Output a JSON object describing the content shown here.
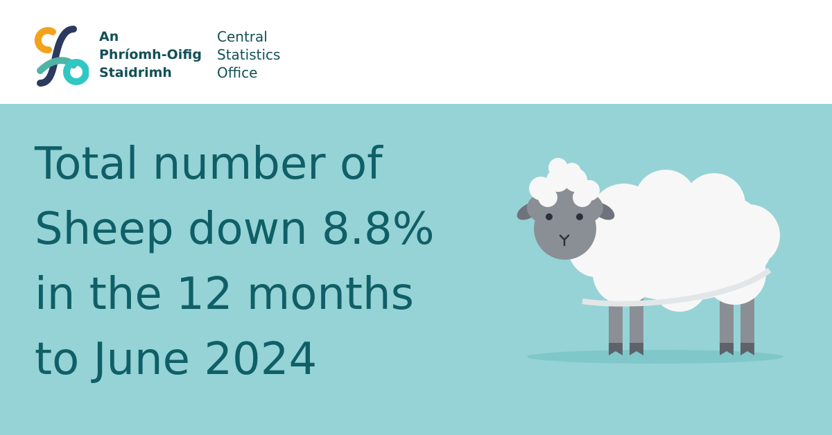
{
  "logo": {
    "irish": [
      "An",
      "Phríomh-Oifig",
      "Staidrimh"
    ],
    "english": [
      "Central",
      "Statistics",
      "Office"
    ]
  },
  "headline": [
    "Total number of",
    "Sheep down 8.8%",
    "in the 12 months",
    "to June 2024"
  ]
}
